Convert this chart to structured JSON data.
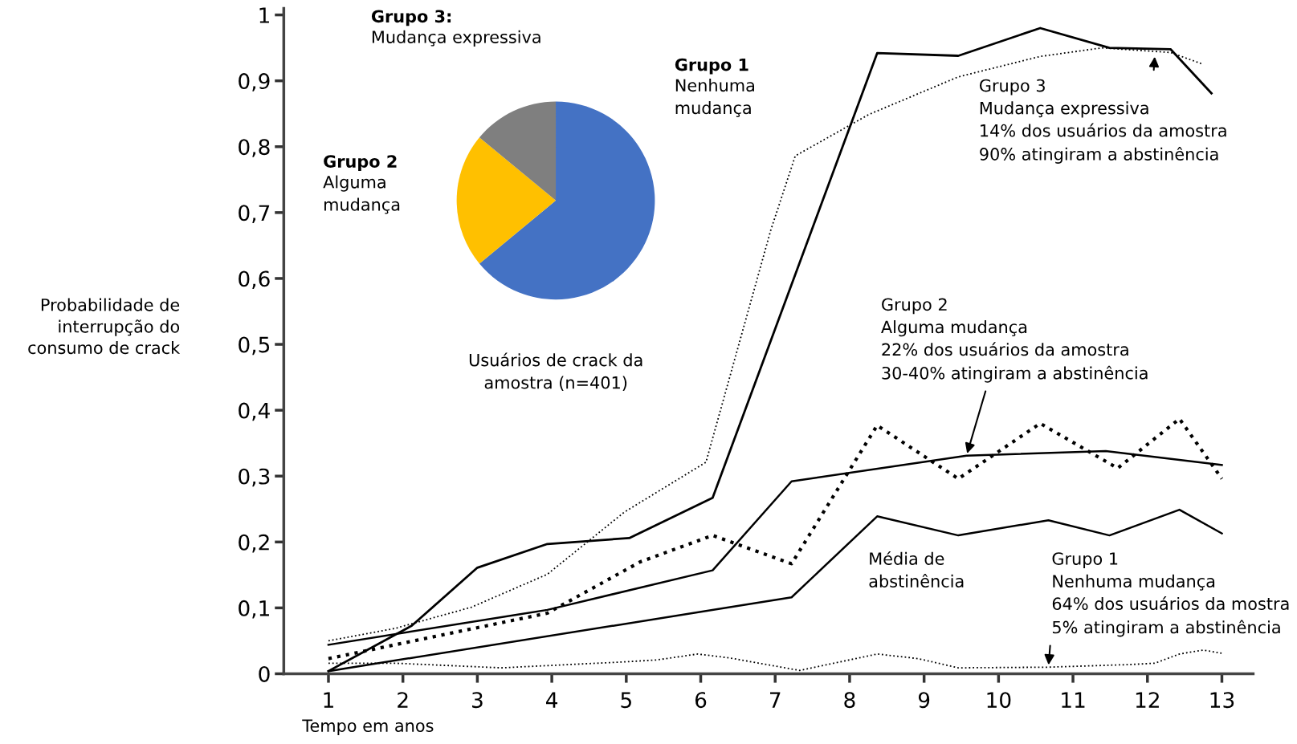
{
  "chart_data": [
    {
      "type": "line",
      "xlabel": "Tempo em anos",
      "ylabel": "Probabilidade de\ninterrupção do\nconsumo de crack",
      "xlim": [
        0.4,
        13.42
      ],
      "ylim": [
        0,
        1.01
      ],
      "xticks": [
        1,
        2,
        3,
        4,
        5,
        6,
        7,
        8,
        9,
        10,
        11,
        12,
        13
      ],
      "yticks": [
        0,
        {
          "value": 0.1,
          "label": "0,1"
        },
        {
          "value": 0.2,
          "label": "0,2"
        },
        {
          "value": 0.3,
          "label": "0,3"
        },
        {
          "value": 0.4,
          "label": "0,4"
        },
        {
          "value": 0.5,
          "label": "0,5"
        },
        {
          "value": 0.6,
          "label": "0,6"
        },
        {
          "value": 0.7,
          "label": "0,7"
        },
        {
          "value": 0.8,
          "label": "0,8"
        },
        {
          "value": 0.9,
          "label": "0,9"
        },
        1
      ],
      "grid": false,
      "legend": false,
      "marker": "none",
      "series": [
        {
          "color": "#000000",
          "line_style": "solid",
          "x": [
            1.0,
            2.12,
            3.0,
            3.94,
            5.04,
            6.16,
            8.37,
            9.46,
            10.56,
            11.49,
            12.31,
            12.86
          ],
          "values": [
            0.004,
            0.073,
            0.161,
            0.197,
            0.206,
            0.267,
            0.942,
            0.938,
            0.98,
            0.95,
            0.948,
            0.881
          ]
        },
        {
          "color": "#000000",
          "line_style": "dotted",
          "x": [
            1.0,
            1.9,
            2.92,
            3.94,
            4.97,
            6.07,
            6.94,
            7.27,
            8.26,
            9.46,
            10.56,
            11.39,
            12.31,
            12.75
          ],
          "values": [
            0.05,
            0.069,
            0.101,
            0.151,
            0.245,
            0.321,
            0.673,
            0.786,
            0.849,
            0.906,
            0.937,
            0.95,
            0.943,
            0.925
          ]
        },
        {
          "color": "#000000",
          "line_style": "solid",
          "x": [
            1,
            3.94,
            6.16,
            7.22,
            9.57,
            11.44,
            13
          ],
          "values": [
            0.044,
            0.097,
            0.157,
            0.292,
            0.331,
            0.338,
            0.317
          ]
        },
        {
          "color": "#000000",
          "line_style": "dotted",
          "x": [
            1,
            3.94,
            5.19,
            6.16,
            7.22,
            8.37,
            9.46,
            10.56,
            11.6,
            12.43,
            13
          ],
          "values": [
            0.023,
            0.092,
            0.17,
            0.21,
            0.167,
            0.377,
            0.296,
            0.38,
            0.312,
            0.387,
            0.296
          ]
        },
        {
          "color": "#000000",
          "line_style": "solid",
          "x": [
            1,
            7.22,
            8.37,
            9.46,
            10.67,
            11.49,
            12.43,
            13
          ],
          "values": [
            0.004,
            0.116,
            0.239,
            0.21,
            0.233,
            0.21,
            0.249,
            0.213
          ]
        },
        {
          "color": "#000000",
          "line_style": "dotted",
          "x": [
            1,
            1.9,
            3.32,
            4.97,
            5.41,
            5.96,
            6.39,
            7.33,
            8.37,
            8.92,
            9.46,
            10.67,
            11.77,
            12.1,
            12.43,
            12.75,
            13
          ],
          "values": [
            0.016,
            0.016,
            0.009,
            0.018,
            0.021,
            0.03,
            0.024,
            0.005,
            0.03,
            0.023,
            0.009,
            0.01,
            0.014,
            0.016,
            0.03,
            0.036,
            0.031
          ]
        }
      ],
      "annotations": [
        {
          "text": "Grupo 3\nMudança expressiva\n14% dos usuários da amostra\n90% atingiram a abstinência",
          "x": 12.1,
          "y": 0.94
        },
        {
          "text": "Grupo 2\nAlguma mudança\n22% dos usuários da amostra\n30-40% atingiram a abstinência",
          "x": 9.57,
          "y": 0.331
        },
        {
          "text": "Grupo 1\nNenhuma mudança\n64% dos usuários da mostra\n5% atingiram a abstinência",
          "x": 10.67,
          "y": 0.01
        },
        "Média de\nabstinência"
      ]
    },
    {
      "type": "pie",
      "title": "Usuários de crack da\namostra (n=401)",
      "categories": [
        "Grupo 1\nNenhuma\nmudança",
        "Grupo 2\nAlguma\nmudança",
        "Grupo 3:\nMudança expressiva"
      ],
      "values": [
        64,
        22,
        14
      ],
      "colors": [
        "#4472c4",
        "#ffc000",
        "#7f7f7f"
      ]
    }
  ]
}
